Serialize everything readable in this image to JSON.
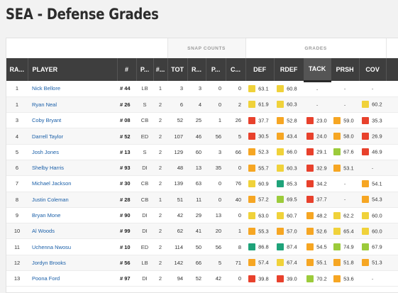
{
  "title": "SEA - Defense Grades",
  "groups": {
    "snap": "SNAP COUNTS",
    "grades": "GRADES"
  },
  "columns": [
    "RA...",
    "PLAYER",
    "#",
    "P...",
    "#...",
    "TOT",
    "R...",
    "P...",
    "C...",
    "DEF",
    "RDEF",
    "TACK",
    "PRSH",
    "COV"
  ],
  "colors": {
    "red": "#e8412c",
    "orange": "#f6a623",
    "yellow": "#f0d23a",
    "green": "#9ccb3b",
    "teal": "#1fa37a"
  },
  "rows": [
    {
      "rank": "1",
      "player": "Nick Bellore",
      "num": "# 44",
      "pos": "LB",
      "gp": "1",
      "tot": "3",
      "r": "3",
      "p": "0",
      "c": "0",
      "def": [
        "63.1",
        "yellow"
      ],
      "rdef": [
        "60.8",
        "yellow"
      ],
      "tack": [
        "-",
        ""
      ],
      "prsh": [
        "-",
        ""
      ],
      "cov": [
        "-",
        ""
      ]
    },
    {
      "rank": "1",
      "player": "Ryan Neal",
      "num": "# 26",
      "pos": "S",
      "gp": "2",
      "tot": "6",
      "r": "4",
      "p": "0",
      "c": "2",
      "def": [
        "61.9",
        "yellow"
      ],
      "rdef": [
        "60.3",
        "yellow"
      ],
      "tack": [
        "-",
        ""
      ],
      "prsh": [
        "-",
        ""
      ],
      "cov": [
        "60.2",
        "yellow"
      ]
    },
    {
      "rank": "3",
      "player": "Coby Bryant",
      "num": "# 08",
      "pos": "CB",
      "gp": "2",
      "tot": "52",
      "r": "25",
      "p": "1",
      "c": "26",
      "def": [
        "37.7",
        "red"
      ],
      "rdef": [
        "52.8",
        "orange"
      ],
      "tack": [
        "23.0",
        "red"
      ],
      "prsh": [
        "59.0",
        "orange"
      ],
      "cov": [
        "35.3",
        "red"
      ]
    },
    {
      "rank": "4",
      "player": "Darrell Taylor",
      "num": "# 52",
      "pos": "ED",
      "gp": "2",
      "tot": "107",
      "r": "46",
      "p": "56",
      "c": "5",
      "def": [
        "30.5",
        "red"
      ],
      "rdef": [
        "43.4",
        "orange"
      ],
      "tack": [
        "24.0",
        "red"
      ],
      "prsh": [
        "58.0",
        "orange"
      ],
      "cov": [
        "26.9",
        "red"
      ]
    },
    {
      "rank": "5",
      "player": "Josh Jones",
      "num": "# 13",
      "pos": "S",
      "gp": "2",
      "tot": "129",
      "r": "60",
      "p": "3",
      "c": "66",
      "def": [
        "52.3",
        "orange"
      ],
      "rdef": [
        "66.0",
        "yellow"
      ],
      "tack": [
        "29.1",
        "red"
      ],
      "prsh": [
        "67.6",
        "green"
      ],
      "cov": [
        "46.9",
        "red"
      ]
    },
    {
      "rank": "6",
      "player": "Shelby Harris",
      "num": "# 93",
      "pos": "DI",
      "gp": "2",
      "tot": "48",
      "r": "13",
      "p": "35",
      "c": "0",
      "def": [
        "55.7",
        "orange"
      ],
      "rdef": [
        "60.3",
        "yellow"
      ],
      "tack": [
        "32.9",
        "red"
      ],
      "prsh": [
        "53.1",
        "orange"
      ],
      "cov": [
        "-",
        ""
      ]
    },
    {
      "rank": "7",
      "player": "Michael Jackson",
      "num": "# 30",
      "pos": "CB",
      "gp": "2",
      "tot": "139",
      "r": "63",
      "p": "0",
      "c": "76",
      "def": [
        "60.9",
        "yellow"
      ],
      "rdef": [
        "85.3",
        "teal"
      ],
      "tack": [
        "34.2",
        "red"
      ],
      "prsh": [
        "-",
        ""
      ],
      "cov": [
        "54.1",
        "orange"
      ]
    },
    {
      "rank": "8",
      "player": "Justin Coleman",
      "num": "# 28",
      "pos": "CB",
      "gp": "1",
      "tot": "51",
      "r": "11",
      "p": "0",
      "c": "40",
      "def": [
        "57.2",
        "orange"
      ],
      "rdef": [
        "69.5",
        "green"
      ],
      "tack": [
        "37.7",
        "red"
      ],
      "prsh": [
        "-",
        ""
      ],
      "cov": [
        "54.3",
        "orange"
      ]
    },
    {
      "rank": "9",
      "player": "Bryan Mone",
      "num": "# 90",
      "pos": "DI",
      "gp": "2",
      "tot": "42",
      "r": "29",
      "p": "13",
      "c": "0",
      "def": [
        "63.0",
        "yellow"
      ],
      "rdef": [
        "60.7",
        "yellow"
      ],
      "tack": [
        "48.2",
        "orange"
      ],
      "prsh": [
        "62.2",
        "yellow"
      ],
      "cov": [
        "60.0",
        "yellow"
      ]
    },
    {
      "rank": "10",
      "player": "Al Woods",
      "num": "# 99",
      "pos": "DI",
      "gp": "2",
      "tot": "62",
      "r": "41",
      "p": "20",
      "c": "1",
      "def": [
        "55.3",
        "orange"
      ],
      "rdef": [
        "57.0",
        "orange"
      ],
      "tack": [
        "52.6",
        "orange"
      ],
      "prsh": [
        "65.4",
        "yellow"
      ],
      "cov": [
        "60.0",
        "yellow"
      ]
    },
    {
      "rank": "11",
      "player": "Uchenna Nwosu",
      "num": "# 10",
      "pos": "ED",
      "gp": "2",
      "tot": "114",
      "r": "50",
      "p": "56",
      "c": "8",
      "def": [
        "86.8",
        "teal"
      ],
      "rdef": [
        "87.4",
        "teal"
      ],
      "tack": [
        "54.5",
        "orange"
      ],
      "prsh": [
        "74.9",
        "green"
      ],
      "cov": [
        "67.9",
        "green"
      ]
    },
    {
      "rank": "12",
      "player": "Jordyn Brooks",
      "num": "# 56",
      "pos": "LB",
      "gp": "2",
      "tot": "142",
      "r": "66",
      "p": "5",
      "c": "71",
      "def": [
        "57.4",
        "orange"
      ],
      "rdef": [
        "67.4",
        "yellow"
      ],
      "tack": [
        "55.1",
        "orange"
      ],
      "prsh": [
        "51.8",
        "orange"
      ],
      "cov": [
        "51.3",
        "orange"
      ]
    },
    {
      "rank": "13",
      "player": "Poona Ford",
      "num": "# 97",
      "pos": "DI",
      "gp": "2",
      "tot": "94",
      "r": "52",
      "p": "42",
      "c": "0",
      "def": [
        "39.8",
        "red"
      ],
      "rdef": [
        "39.0",
        "red"
      ],
      "tack": [
        "70.2",
        "green"
      ],
      "prsh": [
        "53.6",
        "orange"
      ],
      "cov": [
        "-",
        ""
      ]
    }
  ]
}
